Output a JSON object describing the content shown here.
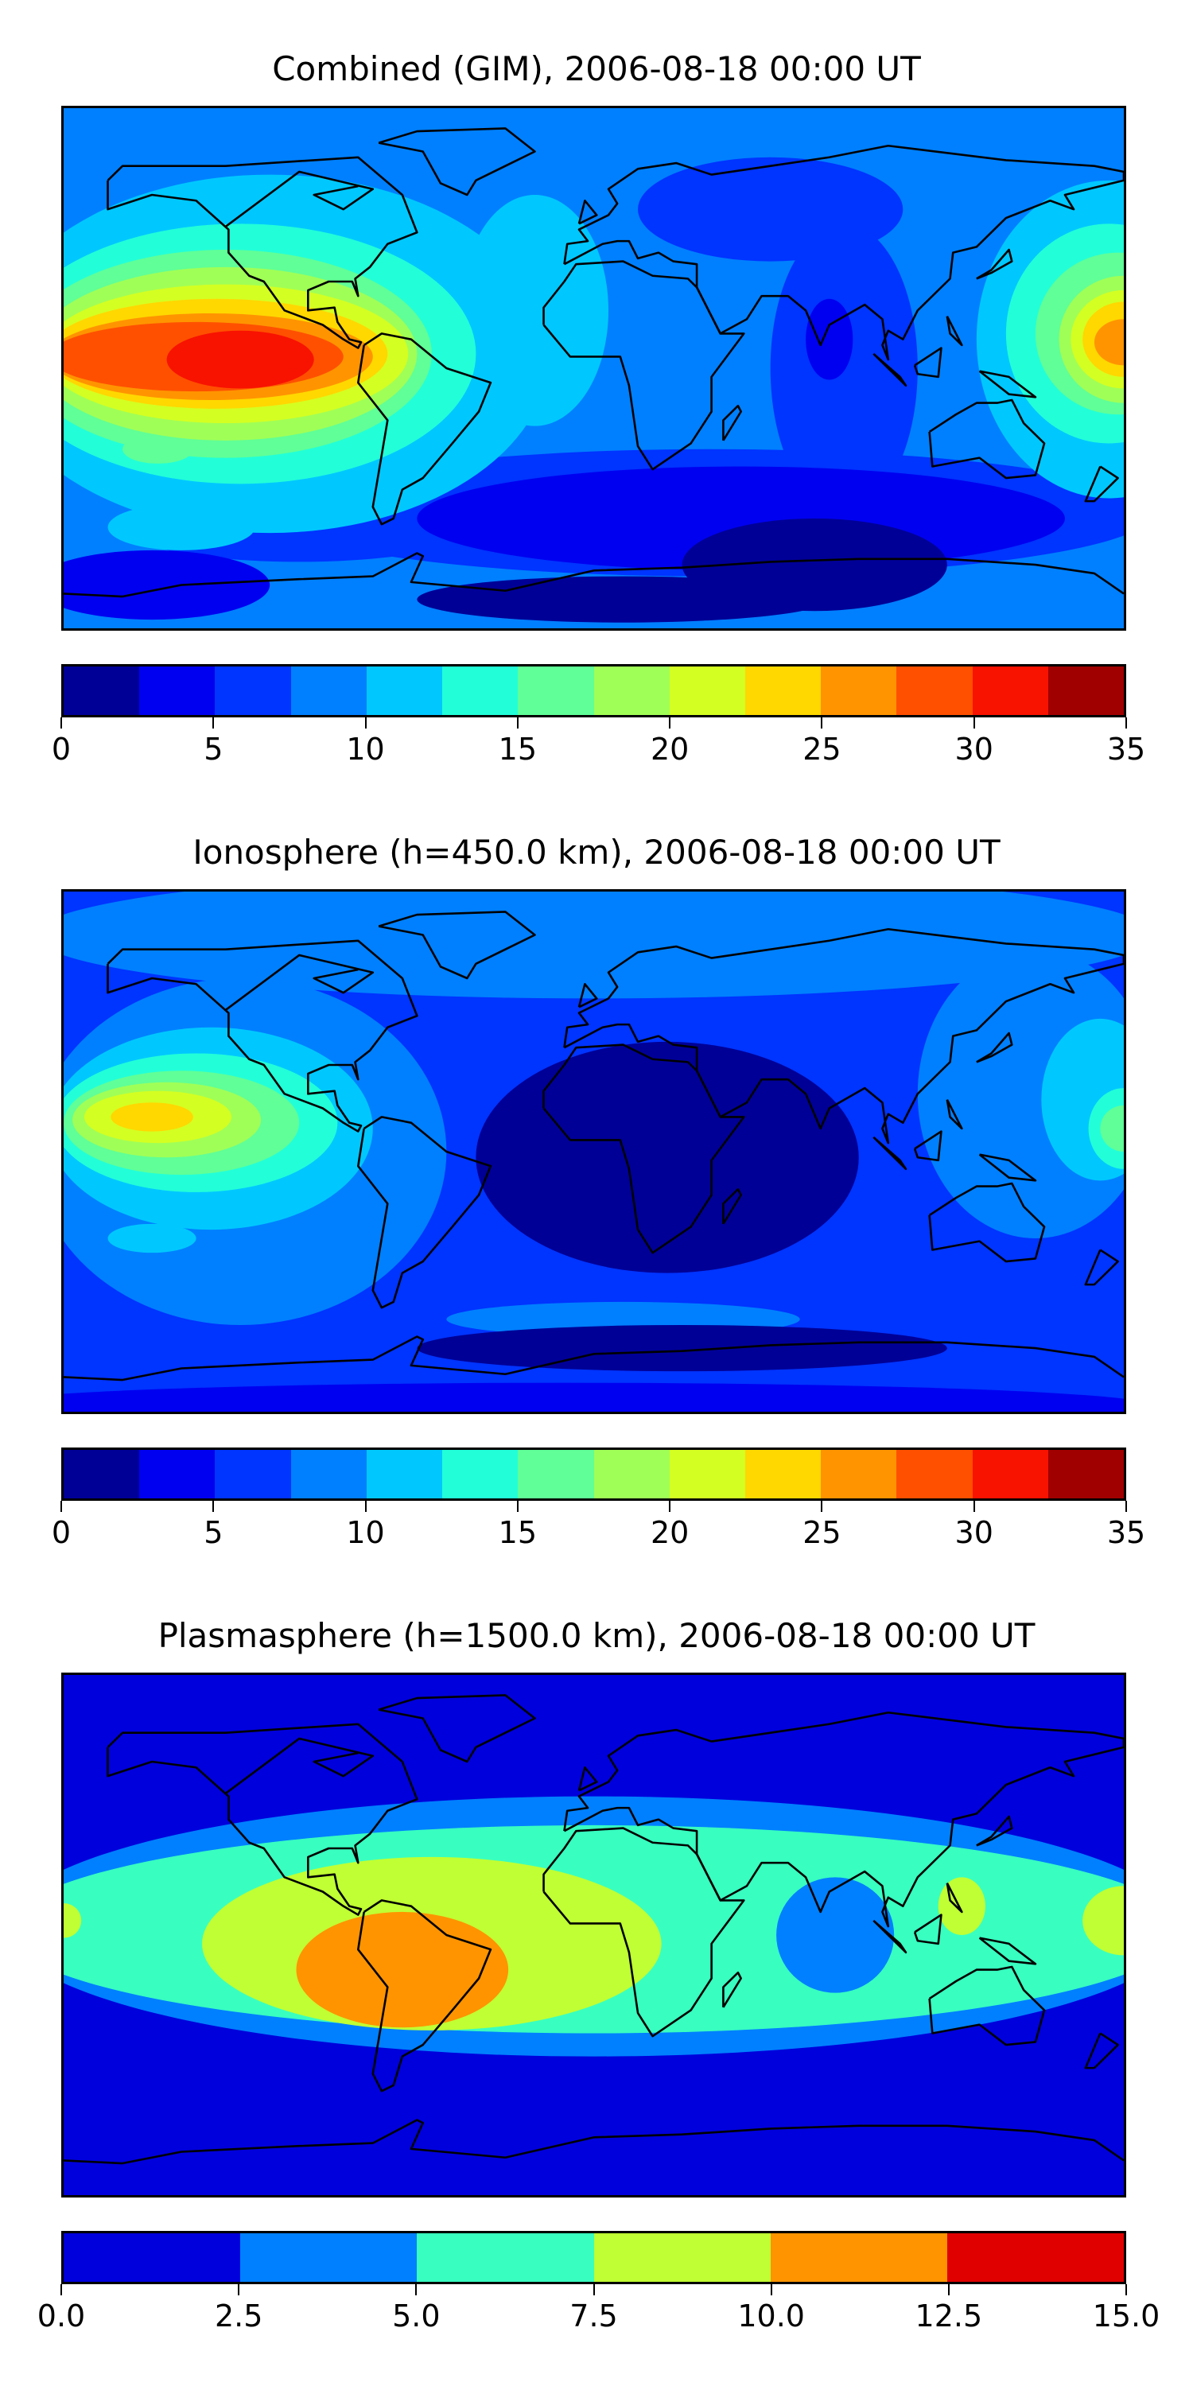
{
  "panels": [
    {
      "title": "Combined (GIM), 2006-08-18 00:00 UT",
      "colorbar": {
        "ticks": [
          "0",
          "5",
          "10",
          "15",
          "20",
          "25",
          "30",
          "35"
        ],
        "range": [
          0,
          35
        ],
        "levels": [
          0,
          2.5,
          5,
          7.5,
          10,
          12.5,
          15,
          17.5,
          20,
          22.5,
          25,
          27.5,
          30,
          32.5,
          35
        ],
        "colors": [
          "#000097",
          "#0000f0",
          "#0034ff",
          "#0080ff",
          "#00c8ff",
          "#22ffd8",
          "#60ff97",
          "#a0ff56",
          "#d4ff22",
          "#ffd800",
          "#ff9400",
          "#ff5000",
          "#f81200",
          "#a00000"
        ]
      }
    },
    {
      "title": "Ionosphere  (h=450.0 km), 2006-08-18 00:00 UT",
      "colorbar": {
        "ticks": [
          "0",
          "5",
          "10",
          "15",
          "20",
          "25",
          "30",
          "35"
        ],
        "range": [
          0,
          35
        ],
        "levels": [
          0,
          2.5,
          5,
          7.5,
          10,
          12.5,
          15,
          17.5,
          20,
          22.5,
          25,
          27.5,
          30,
          32.5,
          35
        ],
        "colors": [
          "#000097",
          "#0000f0",
          "#0034ff",
          "#0080ff",
          "#00c8ff",
          "#22ffd8",
          "#60ff97",
          "#a0ff56",
          "#d4ff22",
          "#ffd800",
          "#ff9400",
          "#ff5000",
          "#f81200",
          "#a00000"
        ]
      }
    },
    {
      "title": "Plasmasphere (h=1500.0 km), 2006-08-18 00:00 UT",
      "colorbar": {
        "ticks": [
          "0.0",
          "2.5",
          "5.0",
          "7.5",
          "10.0",
          "12.5",
          "15.0"
        ],
        "range": [
          0,
          15
        ],
        "levels": [
          0,
          2.5,
          5,
          7.5,
          10,
          12.5,
          15
        ],
        "colors": [
          "#0000dc",
          "#0080ff",
          "#38ffc0",
          "#c0ff33",
          "#ff9400",
          "#e00000"
        ]
      }
    }
  ]
}
